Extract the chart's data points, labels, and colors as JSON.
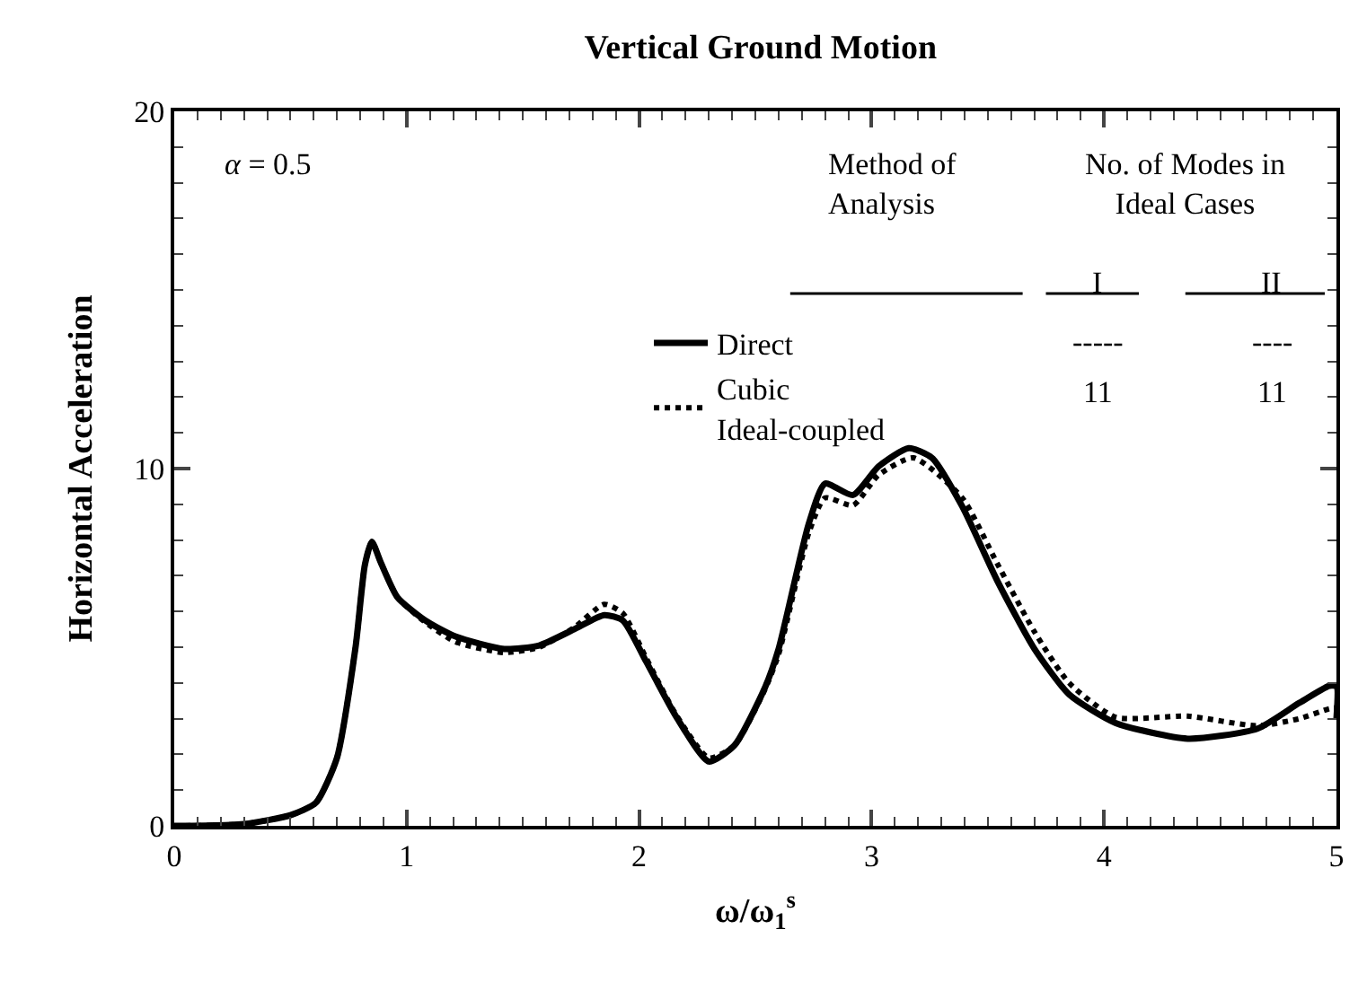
{
  "chart_data": {
    "type": "line",
    "title": "Vertical Ground Motion",
    "xlabel": "ω/ω$_{1}$$^{s}$",
    "ylabel": "Horizontal Acceleration",
    "legend": "top center",
    "series": [
      {
        "name": "Direct",
        "color": "#000000",
        "line_style": "solid",
        "x": [
          0,
          0.3,
          0.5,
          0.61,
          0.7,
          0.78,
          0.82,
          0.85,
          0.89,
          0.96,
          1.08,
          1.21,
          1.42,
          1.57,
          1.72,
          1.85,
          1.93,
          2.03,
          2.16,
          2.3,
          2.41,
          2.54,
          2.6,
          2.73,
          2.8,
          2.92,
          3.03,
          3.16,
          3.26,
          3.39,
          3.54,
          3.7,
          3.85,
          4.05,
          4.36,
          4.66,
          4.84,
          4.97,
          5.0,
          5.0
        ],
        "values": [
          0,
          0.05,
          0.3,
          0.65,
          1.9,
          5.0,
          7.3,
          7.95,
          7.35,
          6.4,
          5.75,
          5.3,
          4.95,
          5.05,
          5.5,
          5.9,
          5.75,
          4.6,
          3.05,
          1.8,
          2.25,
          3.85,
          4.95,
          8.46,
          9.58,
          9.26,
          10.06,
          10.57,
          10.3,
          8.94,
          6.87,
          4.96,
          3.68,
          2.88,
          2.44,
          2.72,
          3.44,
          3.92,
          3.9,
          3.0
        ]
      },
      {
        "name": "Cubic\nIdeal-coupled",
        "color": "#000000",
        "line_style": "dotted",
        "x": [
          0,
          0.3,
          0.5,
          0.61,
          0.7,
          0.78,
          0.82,
          0.85,
          0.89,
          0.96,
          1.08,
          1.21,
          1.42,
          1.57,
          1.72,
          1.85,
          1.93,
          2.03,
          2.16,
          2.3,
          2.41,
          2.54,
          2.6,
          2.73,
          2.8,
          2.92,
          3.03,
          3.18,
          3.39,
          3.54,
          3.7,
          3.85,
          4.05,
          4.36,
          4.66,
          4.84,
          4.97,
          5.0
        ],
        "values": [
          0,
          0.05,
          0.3,
          0.65,
          1.9,
          5.0,
          7.3,
          7.95,
          7.35,
          6.4,
          5.7,
          5.15,
          4.85,
          5.0,
          5.55,
          6.2,
          5.95,
          4.7,
          3.1,
          1.9,
          2.25,
          3.8,
          4.8,
          8.2,
          9.18,
          8.97,
          9.82,
          10.3,
          9.18,
          7.35,
          5.44,
          4.0,
          3.04,
          3.07,
          2.8,
          3.0,
          3.28,
          3.3
        ]
      }
    ],
    "annotations": [
      "α = 0.5",
      "Method of\nAnalysis",
      "No. of Modes in\nIdeal Cases",
      "I",
      "II",
      "-----",
      "----",
      "11",
      "11"
    ],
    "xlim": [
      0,
      5
    ],
    "ylim": [
      0,
      20
    ],
    "xticks": [
      0,
      {
        "value": 0.1,
        "label": null
      },
      {
        "value": 0.2,
        "label": null
      },
      {
        "value": 0.3,
        "label": null
      },
      {
        "value": 0.4,
        "label": null
      },
      {
        "value": 0.5,
        "label": null
      },
      {
        "value": 0.6,
        "label": null
      },
      {
        "value": 0.7,
        "label": null
      },
      {
        "value": 0.8,
        "label": null
      },
      {
        "value": 0.9,
        "label": null
      },
      1,
      {
        "value": 1.1,
        "label": null
      },
      {
        "value": 1.2,
        "label": null
      },
      {
        "value": 1.3,
        "label": null
      },
      {
        "value": 1.4,
        "label": null
      },
      {
        "value": 1.5,
        "label": null
      },
      {
        "value": 1.6,
        "label": null
      },
      {
        "value": 1.7,
        "label": null
      },
      {
        "value": 1.8,
        "label": null
      },
      {
        "value": 1.9,
        "label": null
      },
      2,
      {
        "value": 2.1,
        "label": null
      },
      {
        "value": 2.2,
        "label": null
      },
      {
        "value": 2.3,
        "label": null
      },
      {
        "value": 2.4,
        "label": null
      },
      {
        "value": 2.5,
        "label": null
      },
      {
        "value": 2.6,
        "label": null
      },
      {
        "value": 2.7,
        "label": null
      },
      {
        "value": 2.8,
        "label": null
      },
      {
        "value": 2.9,
        "label": null
      },
      3,
      {
        "value": 3.1,
        "label": null
      },
      {
        "value": 3.2,
        "label": null
      },
      {
        "value": 3.3,
        "label": null
      },
      {
        "value": 3.4,
        "label": null
      },
      {
        "value": 3.5,
        "label": null
      },
      {
        "value": 3.6,
        "label": null
      },
      {
        "value": 3.7,
        "label": null
      },
      {
        "value": 3.8,
        "label": null
      },
      {
        "value": 3.9,
        "label": null
      },
      4,
      {
        "value": 4.1,
        "label": null
      },
      {
        "value": 4.2,
        "label": null
      },
      {
        "value": 4.3,
        "label": null
      },
      {
        "value": 4.4,
        "label": null
      },
      {
        "value": 4.5,
        "label": null
      },
      {
        "value": 4.6,
        "label": null
      },
      {
        "value": 4.7,
        "label": null
      },
      {
        "value": 4.8,
        "label": null
      },
      {
        "value": 4.9,
        "label": null
      },
      5
    ],
    "yticks": [
      0,
      {
        "value": 1,
        "label": null
      },
      {
        "value": 2,
        "label": null
      },
      {
        "value": 3,
        "label": null
      },
      {
        "value": 4,
        "label": null
      },
      {
        "value": 5,
        "label": null
      },
      {
        "value": 6,
        "label": null
      },
      {
        "value": 7,
        "label": null
      },
      {
        "value": 8,
        "label": null
      },
      {
        "value": 9,
        "label": null
      },
      10,
      {
        "value": 11,
        "label": null
      },
      {
        "value": 12,
        "label": null
      },
      {
        "value": 13,
        "label": null
      },
      {
        "value": 14,
        "label": null
      },
      {
        "value": 15,
        "label": null
      },
      {
        "value": 16,
        "label": null
      },
      {
        "value": 17,
        "label": null
      },
      {
        "value": 18,
        "label": null
      },
      {
        "value": 19,
        "label": null
      },
      20
    ]
  }
}
